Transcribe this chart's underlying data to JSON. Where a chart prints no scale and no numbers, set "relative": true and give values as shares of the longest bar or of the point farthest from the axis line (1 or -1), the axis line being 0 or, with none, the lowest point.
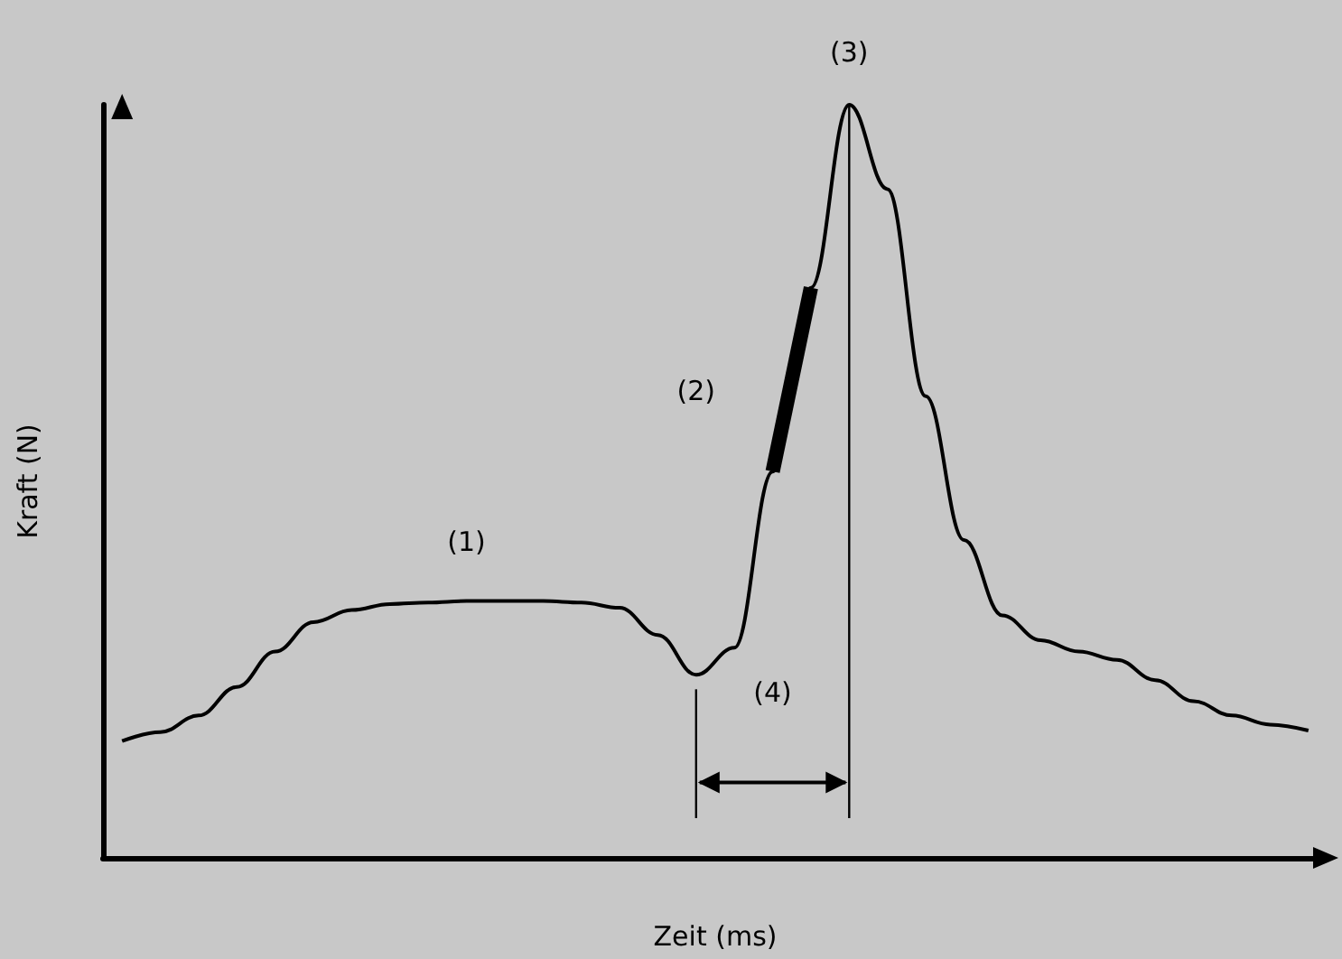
{
  "chart_data": {
    "type": "line",
    "relative": true,
    "xlabel": "Zeit (ms)",
    "ylabel": "Kraft (N)",
    "categories": [
      null,
      null,
      null,
      null,
      null,
      null,
      null,
      null,
      null,
      null,
      null,
      null,
      null,
      null,
      null,
      null,
      null,
      null,
      null,
      null,
      null,
      null,
      null,
      null,
      null,
      null,
      null,
      null,
      null,
      null,
      null,
      null
    ],
    "series": [
      {
        "color": "#000000",
        "values": [
          0.155,
          0.167,
          0.189,
          0.227,
          0.274,
          0.313,
          0.329,
          0.337,
          0.339,
          0.341,
          0.341,
          0.341,
          0.339,
          0.332,
          0.296,
          0.243,
          0.279,
          0.513,
          0.757,
          1,
          0.888,
          0.613,
          0.422,
          0.322,
          0.289,
          0.274,
          0.263,
          0.236,
          0.208,
          0.189,
          0.177,
          0.169
        ]
      },
      {
        "color": "#000000",
        "values": [
          null,
          null,
          null,
          null,
          null,
          null,
          null,
          null,
          null,
          null,
          null,
          null,
          null,
          null,
          null,
          null,
          null,
          0.513,
          0.757,
          null,
          null,
          null,
          null,
          null,
          null,
          null,
          null,
          null,
          null,
          null,
          null,
          null
        ]
      }
    ],
    "annotations": [
      "(1)",
      "(2)",
      "(3)",
      "(4)"
    ],
    "marker": "none"
  }
}
